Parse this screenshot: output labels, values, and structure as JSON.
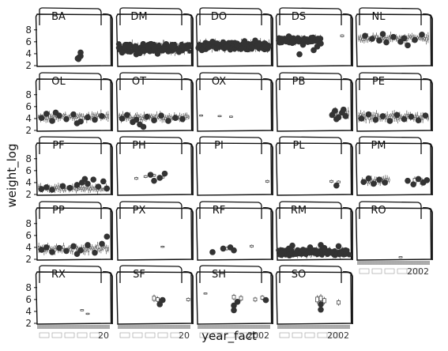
{
  "chart_data": {
    "type": "boxplot-scatter-facets",
    "xlabel": "year_fact",
    "ylabel": "weight_log",
    "ylim": [
      2,
      8.5
    ],
    "y_ticks": [
      2,
      4,
      6,
      8
    ],
    "x_tick_last_label": "2002",
    "x_tick_partial_label": "20",
    "layout": {
      "columns": 5,
      "rows": 5
    },
    "grid": false,
    "panels": [
      {
        "name": "BA",
        "boxes": [
          {
            "x": 0.58,
            "y": 3.5,
            "h": 0.5
          }
        ],
        "points": [
          [
            0.56,
            3.2
          ],
          [
            0.58,
            3.4
          ],
          [
            0.6,
            3.6
          ],
          [
            0.6,
            4.2
          ],
          [
            0.57,
            3.1
          ]
        ]
      },
      {
        "name": "DM",
        "band": [
          0.0,
          1.0,
          5.0,
          1.1
        ],
        "dense": true,
        "points": [
          [
            0.05,
            4.2
          ],
          [
            0.15,
            5.1
          ],
          [
            0.25,
            3.9
          ],
          [
            0.35,
            4.5
          ],
          [
            0.45,
            5.6
          ],
          [
            0.55,
            4.0
          ],
          [
            0.65,
            4.8
          ],
          [
            0.75,
            5.2
          ],
          [
            0.85,
            4.3
          ],
          [
            0.95,
            4.9
          ],
          [
            0.1,
            5.5
          ],
          [
            0.3,
            4.1
          ],
          [
            0.5,
            5.0
          ],
          [
            0.7,
            4.4
          ],
          [
            0.9,
            5.3
          ]
        ]
      },
      {
        "name": "DO",
        "band": [
          0.0,
          1.0,
          5.3,
          1.0
        ],
        "dense": true,
        "points": [
          [
            0.05,
            4.6
          ],
          [
            0.15,
            5.6
          ],
          [
            0.25,
            4.9
          ],
          [
            0.35,
            5.9
          ],
          [
            0.45,
            4.7
          ],
          [
            0.55,
            5.4
          ],
          [
            0.65,
            6.1
          ],
          [
            0.75,
            5.0
          ],
          [
            0.85,
            5.7
          ],
          [
            0.95,
            5.2
          ],
          [
            0.2,
            6.0
          ],
          [
            0.4,
            5.1
          ],
          [
            0.6,
            4.8
          ],
          [
            0.8,
            6.2
          ]
        ]
      },
      {
        "name": "DS",
        "band": [
          0.0,
          0.6,
          6.3,
          0.7
        ],
        "dense": true,
        "points": [
          [
            0.05,
            6.5
          ],
          [
            0.12,
            6.1
          ],
          [
            0.2,
            5.8
          ],
          [
            0.28,
            6.6
          ],
          [
            0.35,
            5.5
          ],
          [
            0.42,
            6.0
          ],
          [
            0.5,
            4.6
          ],
          [
            0.55,
            5.2
          ],
          [
            0.3,
            3.9
          ],
          [
            0.15,
            6.9
          ],
          [
            0.6,
            5.7
          ]
        ],
        "boxes": [
          {
            "x": 0.9,
            "y": 7.0,
            "h": 0.3
          }
        ]
      },
      {
        "name": "NL",
        "band": [
          0.0,
          1.0,
          6.6,
          0.8
        ],
        "dense": false,
        "points": [
          [
            0.1,
            7.0
          ],
          [
            0.2,
            6.5
          ],
          [
            0.3,
            6.2
          ],
          [
            0.4,
            5.9
          ],
          [
            0.5,
            6.8
          ],
          [
            0.6,
            6.0
          ],
          [
            0.7,
            5.4
          ],
          [
            0.8,
            6.3
          ],
          [
            0.9,
            7.2
          ],
          [
            0.35,
            7.3
          ],
          [
            0.65,
            6.6
          ]
        ]
      },
      {
        "name": "OL",
        "band": [
          0.0,
          1.0,
          4.3,
          0.9
        ],
        "dense": false,
        "points": [
          [
            0.05,
            4.1
          ],
          [
            0.12,
            4.8
          ],
          [
            0.2,
            3.6
          ],
          [
            0.3,
            4.5
          ],
          [
            0.4,
            3.9
          ],
          [
            0.5,
            4.7
          ],
          [
            0.6,
            3.5
          ],
          [
            0.7,
            4.2
          ],
          [
            0.8,
            3.8
          ],
          [
            0.9,
            4.4
          ],
          [
            0.25,
            5.0
          ],
          [
            0.55,
            3.2
          ]
        ]
      },
      {
        "name": "OT",
        "band": [
          0.0,
          1.0,
          4.2,
          0.8
        ],
        "dense": false,
        "points": [
          [
            0.05,
            4.0
          ],
          [
            0.12,
            4.6
          ],
          [
            0.2,
            3.4
          ],
          [
            0.3,
            3.0
          ],
          [
            0.4,
            4.3
          ],
          [
            0.5,
            3.7
          ],
          [
            0.6,
            4.5
          ],
          [
            0.7,
            3.6
          ],
          [
            0.8,
            4.1
          ],
          [
            0.9,
            3.9
          ],
          [
            0.35,
            2.6
          ],
          [
            0.25,
            3.8
          ]
        ]
      },
      {
        "name": "OX",
        "boxes": [
          {
            "x": 0.04,
            "y": 4.5,
            "h": 0.2
          },
          {
            "x": 0.3,
            "y": 4.4,
            "h": 0.2
          },
          {
            "x": 0.46,
            "y": 4.3,
            "h": 0.2
          }
        ],
        "points": []
      },
      {
        "name": "PB",
        "band": [
          0.72,
          1.0,
          4.8,
          1.0
        ],
        "dense": false,
        "points": [
          [
            0.76,
            4.6
          ],
          [
            0.8,
            5.3
          ],
          [
            0.85,
            4.2
          ],
          [
            0.9,
            5.0
          ],
          [
            0.95,
            4.4
          ],
          [
            0.82,
            3.9
          ],
          [
            0.92,
            5.5
          ]
        ]
      },
      {
        "name": "PE",
        "band": [
          0.0,
          1.0,
          4.3,
          0.9
        ],
        "dense": false,
        "points": [
          [
            0.05,
            4.0
          ],
          [
            0.15,
            4.7
          ],
          [
            0.25,
            3.8
          ],
          [
            0.35,
            4.4
          ],
          [
            0.45,
            3.6
          ],
          [
            0.55,
            4.6
          ],
          [
            0.65,
            3.9
          ],
          [
            0.75,
            4.3
          ],
          [
            0.85,
            3.7
          ],
          [
            0.95,
            4.5
          ]
        ]
      },
      {
        "name": "PF",
        "band": [
          0.0,
          1.0,
          3.0,
          0.7
        ],
        "dense": false,
        "points": [
          [
            0.05,
            2.9
          ],
          [
            0.12,
            3.2
          ],
          [
            0.2,
            2.8
          ],
          [
            0.35,
            3.4
          ],
          [
            0.45,
            3.1
          ],
          [
            0.55,
            3.6
          ],
          [
            0.62,
            4.0
          ],
          [
            0.7,
            3.8
          ],
          [
            0.78,
            4.5
          ],
          [
            0.85,
            3.3
          ],
          [
            0.92,
            4.2
          ],
          [
            0.97,
            3.0
          ],
          [
            0.66,
            4.6
          ]
        ]
      },
      {
        "name": "PH",
        "boxes": [
          {
            "x": 0.25,
            "y": 4.7,
            "h": 0.3
          },
          {
            "x": 0.38,
            "y": 5.0,
            "h": 0.3
          },
          {
            "x": 0.5,
            "y": 5.2,
            "h": 0.3
          },
          {
            "x": 0.62,
            "y": 4.9,
            "h": 0.3
          }
        ],
        "points": [
          [
            0.5,
            4.3
          ],
          [
            0.58,
            4.8
          ],
          [
            0.65,
            5.5
          ],
          [
            0.45,
            5.3
          ]
        ]
      },
      {
        "name": "PI",
        "boxes": [
          {
            "x": 0.97,
            "y": 4.2,
            "h": 0.3
          }
        ],
        "points": []
      },
      {
        "name": "PL",
        "boxes": [
          {
            "x": 0.75,
            "y": 4.2,
            "h": 0.3
          },
          {
            "x": 0.85,
            "y": 4.1,
            "h": 0.3
          }
        ],
        "points": [
          [
            0.82,
            3.5
          ]
        ]
      },
      {
        "name": "PM",
        "band": [
          0.05,
          0.45,
          4.3,
          0.8
        ],
        "dense": false,
        "points": [
          [
            0.08,
            4.1
          ],
          [
            0.15,
            4.7
          ],
          [
            0.22,
            3.8
          ],
          [
            0.3,
            4.5
          ],
          [
            0.38,
            4.0
          ],
          [
            0.7,
            4.3
          ],
          [
            0.78,
            3.7
          ],
          [
            0.85,
            4.6
          ],
          [
            0.92,
            4.0
          ],
          [
            0.97,
            4.4
          ]
        ],
        "boxes": [
          {
            "x": 0.8,
            "y": 4.3,
            "h": 0.8
          },
          {
            "x": 0.9,
            "y": 4.1,
            "h": 0.8
          }
        ]
      },
      {
        "name": "PP",
        "band": [
          0.0,
          1.0,
          3.8,
          0.9
        ],
        "dense": false,
        "points": [
          [
            0.05,
            3.6
          ],
          [
            0.12,
            4.0
          ],
          [
            0.2,
            3.2
          ],
          [
            0.3,
            3.9
          ],
          [
            0.4,
            3.4
          ],
          [
            0.5,
            4.2
          ],
          [
            0.6,
            3.5
          ],
          [
            0.7,
            4.4
          ],
          [
            0.8,
            3.1
          ],
          [
            0.9,
            4.6
          ],
          [
            0.97,
            5.8
          ],
          [
            0.55,
            2.9
          ]
        ]
      },
      {
        "name": "PX",
        "boxes": [
          {
            "x": 0.62,
            "y": 4.1,
            "h": 0.2
          }
        ],
        "points": []
      },
      {
        "name": "RF",
        "boxes": [
          {
            "x": 0.4,
            "y": 3.8,
            "h": 0.4
          },
          {
            "x": 0.75,
            "y": 4.2,
            "h": 0.3
          }
        ],
        "points": [
          [
            0.2,
            3.2
          ],
          [
            0.35,
            3.8
          ],
          [
            0.45,
            4.0
          ],
          [
            0.5,
            3.5
          ]
        ]
      },
      {
        "name": "RM",
        "band": [
          0.0,
          1.0,
          3.1,
          0.8
        ],
        "dense": true,
        "points": [
          [
            0.05,
            3.0
          ],
          [
            0.15,
            3.8
          ],
          [
            0.25,
            2.9
          ],
          [
            0.35,
            3.6
          ],
          [
            0.45,
            4.0
          ],
          [
            0.55,
            3.3
          ],
          [
            0.65,
            3.9
          ],
          [
            0.75,
            3.1
          ],
          [
            0.85,
            4.2
          ],
          [
            0.95,
            3.5
          ],
          [
            0.2,
            4.3
          ],
          [
            0.6,
            4.4
          ]
        ]
      },
      {
        "name": "RO",
        "boxes": [
          {
            "x": 0.6,
            "y": 2.4,
            "h": 0.1
          }
        ],
        "points": []
      },
      {
        "name": "RX",
        "boxes": [
          {
            "x": 0.62,
            "y": 4.2,
            "h": 0.2
          },
          {
            "x": 0.7,
            "y": 3.6,
            "h": 0.2
          }
        ],
        "points": []
      },
      {
        "name": "SF",
        "boxes": [
          {
            "x": 0.5,
            "y": 6.2,
            "h": 0.7
          },
          {
            "x": 0.55,
            "y": 6.0,
            "h": 0.6
          },
          {
            "x": 0.6,
            "y": 5.8,
            "h": 0.6
          },
          {
            "x": 0.98,
            "y": 6.0,
            "h": 0.4
          }
        ],
        "points": [
          [
            0.58,
            5.2
          ],
          [
            0.62,
            5.9
          ]
        ]
      },
      {
        "name": "SH",
        "boxes": [
          {
            "x": 0.1,
            "y": 7.0,
            "h": 0.2
          },
          {
            "x": 0.5,
            "y": 6.4,
            "h": 0.6
          },
          {
            "x": 0.6,
            "y": 6.2,
            "h": 0.6
          },
          {
            "x": 0.8,
            "y": 6.0,
            "h": 0.5
          },
          {
            "x": 0.9,
            "y": 6.3,
            "h": 0.5
          }
        ],
        "points": [
          [
            0.5,
            5.0
          ],
          [
            0.5,
            4.2
          ],
          [
            0.55,
            5.6
          ],
          [
            0.95,
            5.9
          ]
        ]
      },
      {
        "name": "SO",
        "boxes": [
          {
            "x": 0.55,
            "y": 6.0,
            "h": 0.8
          },
          {
            "x": 0.6,
            "y": 6.2,
            "h": 0.8
          },
          {
            "x": 0.65,
            "y": 5.8,
            "h": 0.7
          },
          {
            "x": 0.85,
            "y": 5.5,
            "h": 0.6
          }
        ],
        "points": [
          [
            0.6,
            5.2
          ],
          [
            0.6,
            4.3
          ]
        ]
      }
    ]
  }
}
